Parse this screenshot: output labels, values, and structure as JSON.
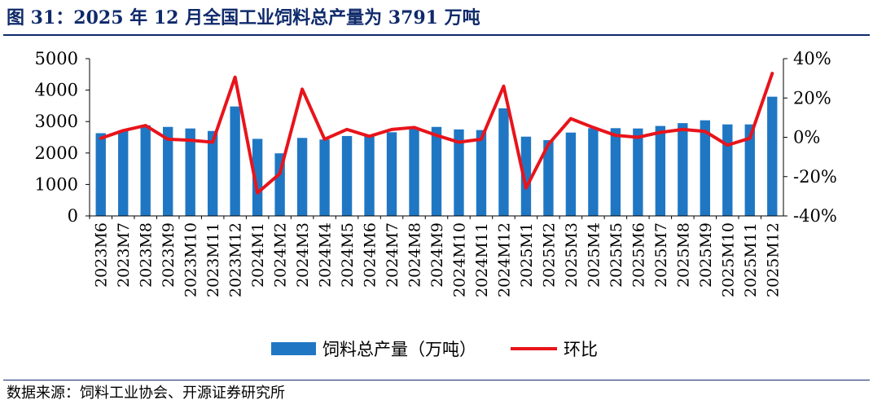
{
  "title": "图 31：2025 年 12 月全国工业饲料总产量为 3791 万吨",
  "source": "数据来源：饲料工业协会、开源证券研究所",
  "colors": {
    "bar": "#1f77c4",
    "line": "#e8141b",
    "title": "#0f2a6b"
  },
  "chart_data": {
    "type": "bar+line",
    "categories": [
      "2023M6",
      "2023M7",
      "2023M8",
      "2023M9",
      "2023M10",
      "2023M11",
      "2023M12",
      "2024M1",
      "2024M2",
      "2024M3",
      "2024M4",
      "2024M5",
      "2024M6",
      "2024M7",
      "2024M8",
      "2024M9",
      "2024M10",
      "2024M11",
      "2024M12",
      "2025M1",
      "2025M2",
      "2025M3",
      "2025M4",
      "2025M5",
      "2025M6",
      "2025M7",
      "2025M8",
      "2025M9",
      "2025M10",
      "2025M11",
      "2025M12"
    ],
    "series": [
      {
        "name": "饲料总产量（万吨）",
        "kind": "bar",
        "axis": "left",
        "values": [
          2630,
          2720,
          2880,
          2830,
          2780,
          2700,
          3480,
          2450,
          1990,
          2480,
          2430,
          2540,
          2530,
          2660,
          2800,
          2830,
          2750,
          2730,
          3420,
          2520,
          2410,
          2650,
          2790,
          2790,
          2780,
          2860,
          2950,
          3040,
          2910,
          2910,
          3791
        ]
      },
      {
        "name": "环比",
        "kind": "line",
        "axis": "right",
        "values": [
          -0.5,
          3.4,
          6.0,
          -1.0,
          -1.5,
          -2.5,
          30.6,
          -28.3,
          -18.5,
          24.5,
          -1.0,
          4.0,
          0.5,
          4.0,
          5.0,
          1.0,
          -2.5,
          -1.0,
          26.0,
          -25.8,
          -3.6,
          9.5,
          5.0,
          1.0,
          0.0,
          2.5,
          4.0,
          3.0,
          -4.0,
          -0.5,
          32.5
        ]
      }
    ],
    "left_axis": {
      "min": 0,
      "max": 5000,
      "ticks": [
        0,
        1000,
        2000,
        3000,
        4000,
        5000
      ],
      "tick_labels": [
        "0",
        "1000",
        "2000",
        "3000",
        "4000",
        "5000"
      ]
    },
    "right_axis": {
      "min": -40,
      "max": 40,
      "ticks": [
        -40,
        -20,
        0,
        20,
        40
      ],
      "tick_labels": [
        "-40%",
        "-20%",
        "0%",
        "20%",
        "40%"
      ]
    },
    "legend": {
      "position": "bottom",
      "items": [
        "饲料总产量（万吨）",
        "环比"
      ]
    }
  }
}
